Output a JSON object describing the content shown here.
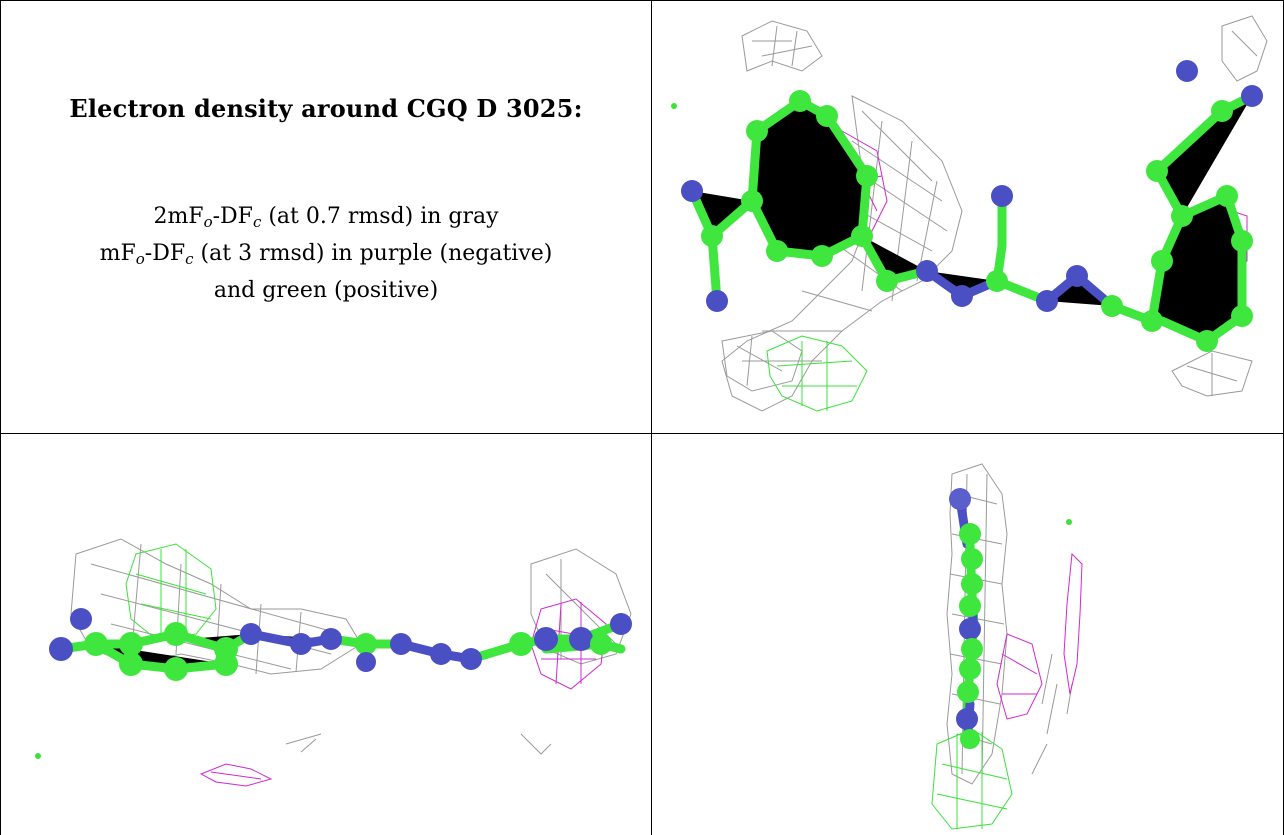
{
  "caption": {
    "title": "Electron density around CGQ D 3025:",
    "line1_prefix": "2mF",
    "line1_sub_o": "o",
    "line1_mid": "-DF",
    "line1_sub_c": "c",
    "line1_suffix": " (at 0.7 rmsd) in gray",
    "line2_prefix": "mF",
    "line2_sub_o": "o",
    "line2_mid": "-DF",
    "line2_sub_c": "c",
    "line2_suffix": " (at 3 rmsd) in purple (negative)",
    "line3": "and green (positive)"
  },
  "colors": {
    "carbon": "#3ee63e",
    "nitrogen": "#4a4fc4",
    "map_2fofc": "#9a9a9a",
    "map_negative": "#d02ad0",
    "map_positive": "#3be23b"
  },
  "panels": [
    "view-top-right",
    "view-bottom-left",
    "view-bottom-right"
  ]
}
